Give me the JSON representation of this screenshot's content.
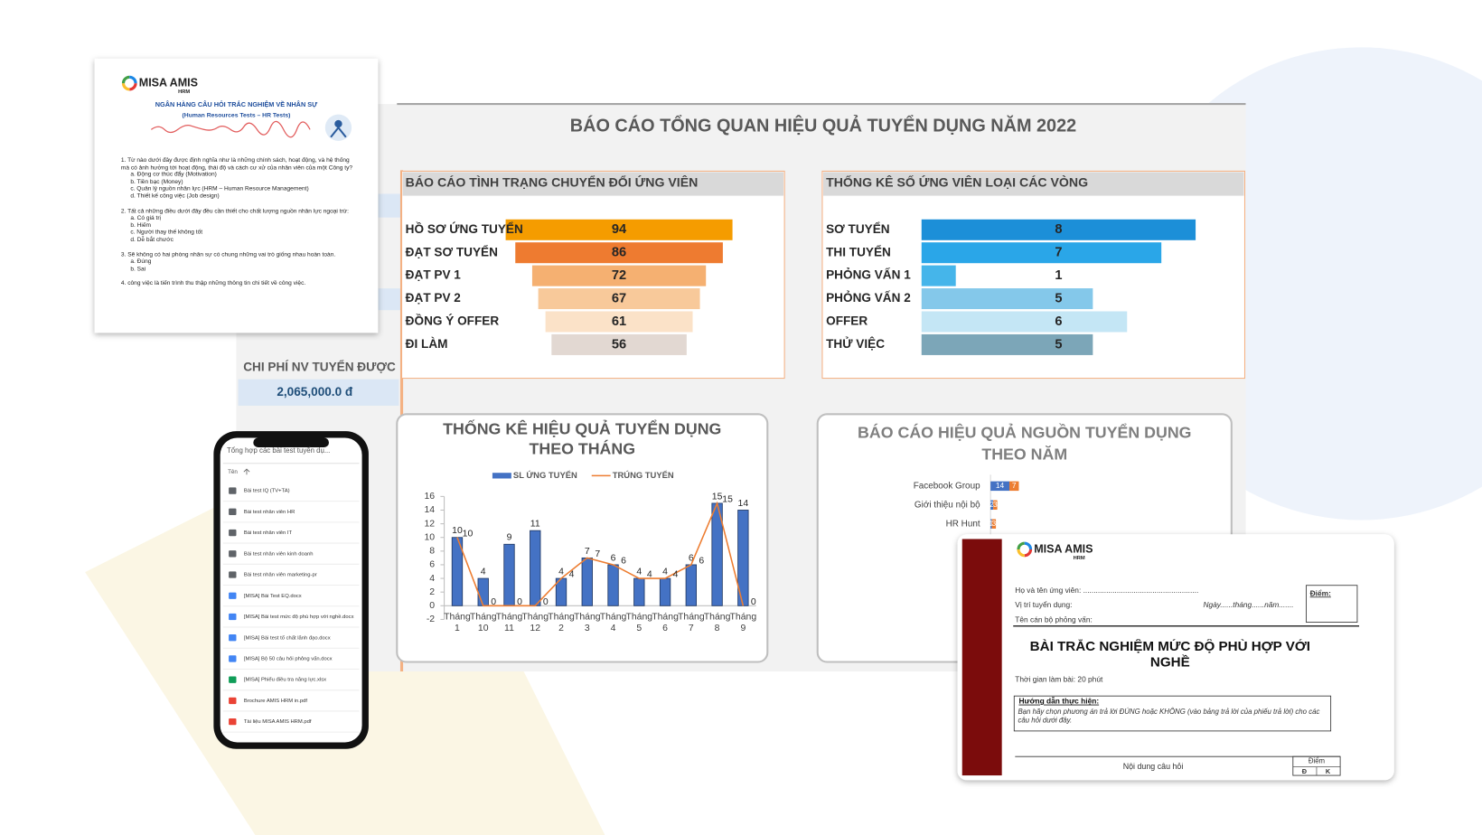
{
  "dashboard": {
    "title": "BÁO CÁO TỔNG QUAN HIỆU QUẢ TUYỂN DỤNG NĂM 2022",
    "cost_label": "CHI PHÍ NV TUYỂN ĐƯỢC",
    "cost_value": "2,065,000.0 đ"
  },
  "chart_data": [
    {
      "type": "funnel",
      "title": "BÁO CÁO TÌNH TRẠNG CHUYỂN ĐỔI ỨNG VIÊN",
      "align": "center",
      "categories": [
        "HỒ SƠ ỨNG TUYỂN",
        "ĐẠT SƠ TUYỂN",
        "ĐẠT PV 1",
        "ĐẠT PV 2",
        "ĐỒNG Ý OFFER",
        "ĐI LÀM"
      ],
      "values": [
        94,
        86,
        72,
        67,
        61,
        56
      ],
      "colors": [
        "#f59c00",
        "#ee7b30",
        "#f5b071",
        "#f8c99a",
        "#fbe2c8",
        "#e2d8d2"
      ]
    },
    {
      "type": "funnel",
      "title": "THỐNG KÊ SỐ ỨNG VIÊN LOẠI CÁC VÒNG",
      "align": "left",
      "categories": [
        "SƠ TUYỂN",
        "THI TUYỂN",
        "PHỎNG VẤN 1",
        "PHỎNG VẤN 2",
        "OFFER",
        "THỬ VIỆC"
      ],
      "values": [
        8,
        7,
        1,
        5,
        6,
        5
      ],
      "colors": [
        "#1c8fd8",
        "#2aa6e8",
        "#45b5ea",
        "#84c8ea",
        "#c4e6f5",
        "#7ca6b8"
      ]
    },
    {
      "type": "combo",
      "title": "THỐNG KÊ HIỆU QUẢ TUYỂN DỤNG THEO THÁNG",
      "legend": "top",
      "grid": false,
      "categories": [
        "Tháng 1",
        "Tháng 10",
        "Tháng 11",
        "Tháng 12",
        "Tháng 2",
        "Tháng 3",
        "Tháng 4",
        "Tháng 5",
        "Tháng 6",
        "Tháng 7",
        "Tháng 8",
        "Tháng 9"
      ],
      "series": [
        {
          "name": "SL ỨNG TUYỂN",
          "mark": "bar",
          "color": "#4472c4",
          "values": [
            10,
            4,
            9,
            11,
            4,
            7,
            6,
            4,
            4,
            6,
            15,
            14
          ]
        },
        {
          "name": "TRÚNG TUYỂN",
          "mark": "line",
          "color": "#ed7d31",
          "values": [
            10,
            0,
            0,
            0,
            4,
            7,
            6,
            4,
            4,
            6,
            15,
            0
          ]
        }
      ],
      "ylim": [
        -2,
        16
      ],
      "yticks": [
        -2,
        0,
        2,
        4,
        6,
        8,
        10,
        12,
        14,
        16
      ]
    },
    {
      "type": "hbar",
      "title": "BÁO CÁO HIỆU QUẢ NGUỒN TUYỂN DỤNG THEO NĂM",
      "stacked": true,
      "categories": [
        "Facebook Group",
        "Giới thiệu nội bộ",
        "HR Hunt"
      ],
      "series": [
        {
          "color": "#4472c4",
          "values": [
            14,
            2,
            1
          ]
        },
        {
          "color": "#ed7d31",
          "values": [
            7,
            3,
            3
          ]
        }
      ],
      "xlim": [
        0,
        150
      ]
    }
  ],
  "doc_left": {
    "logo": "MISA AMIS",
    "logo_sub": "HRM",
    "title": "NGÂN HÀNG CÂU HỎI TRẮC NGHIỆM VỀ NHÂN SỰ",
    "subtitle": "(Human Resources Tests – HR Tests)",
    "questions": [
      {
        "text": "1. Từ nào dưới đây được định nghĩa như là những chính sách, hoạt động, và hệ thống mà có ảnh hưởng tới hoạt động, thái độ và cách cư xử của nhân viên của một Công ty?",
        "options": [
          "a. Động cơ thúc đẩy (Motivation)",
          "b. Tiền bạc (Money)",
          "c. Quản lý nguồn nhân lực (HRM – Human Resource Management)",
          "d. Thiết kế công việc (Job design)"
        ]
      },
      {
        "text": "2. Tất cả những điều dưới đây đều cần thiết cho chất lượng nguồn nhân lực ngoại trừ:",
        "options": [
          "a. Có giá trị",
          "b. Hiếm",
          "c. Người thay thế không tốt",
          "d. Dễ bắt chước"
        ]
      },
      {
        "text": "3. Sẽ không có hai phòng nhân sự có chung những vai trò giống nhau hoàn toàn.",
        "options": [
          "a. Đúng",
          "b. Sai"
        ]
      },
      {
        "text": "4. công việc là tiến trình thu thập những thông tin chi tiết về công việc.",
        "options": []
      }
    ]
  },
  "phone": {
    "header": "Tổng hợp các bài test tuyển dụ...",
    "column": "Tên",
    "files": [
      {
        "name": "Bài test IQ (TV+TA)",
        "icon": "folder"
      },
      {
        "name": "Bài test nhân viên HR",
        "icon": "folder"
      },
      {
        "name": "Bài test nhân viên IT",
        "icon": "folder"
      },
      {
        "name": "Bài test nhân viên kinh doanh",
        "icon": "folder"
      },
      {
        "name": "Bài test nhân viên marketing-pr",
        "icon": "folder"
      },
      {
        "name": "[MISA] Bài Test EQ.docx",
        "icon": "word"
      },
      {
        "name": "[MISA] Bài test mức độ phù hợp với nghề.docx",
        "icon": "word"
      },
      {
        "name": "[MISA] Bài test tố chất lãnh đạo.docx",
        "icon": "word"
      },
      {
        "name": "[MISA] Bộ 50 câu hỏi phỏng vấn.docx",
        "icon": "word"
      },
      {
        "name": "[MISA] Phiếu điều tra năng lực.xlsx",
        "icon": "excel"
      },
      {
        "name": "Brochure AMIS HRM in.pdf",
        "icon": "pdf"
      },
      {
        "name": "Tài liệu MISA AMIS HRM.pdf",
        "icon": "pdf"
      }
    ]
  },
  "doc_right": {
    "logo": "MISA AMIS",
    "logo_sub": "HRM",
    "candidate": "Họ và tên ứng viên: .......................................................",
    "position": "Vị trí tuyển dụng:",
    "date": "Ngày......tháng......năm.......",
    "interviewer": "Tên cán bộ phỏng vấn:",
    "score_label": "Điểm:",
    "title": "BÀI TRẮC NGHIỆM MỨC ĐỘ PHÙ HỢP VỚI NGHỀ",
    "time": "Thời gian làm bài: 20 phút",
    "guide_title": "Hướng dẫn thực hiện:",
    "guide": "Bạn hãy chọn phương án trả lời ĐÚNG hoặc KHÔNG (vào bảng trả lời của phiếu trả lời) cho các câu hỏi dưới đây.",
    "col_question": "Nội dung câu hỏi",
    "col_score": "Điểm",
    "col_yes": "Đ",
    "col_no": "K"
  }
}
